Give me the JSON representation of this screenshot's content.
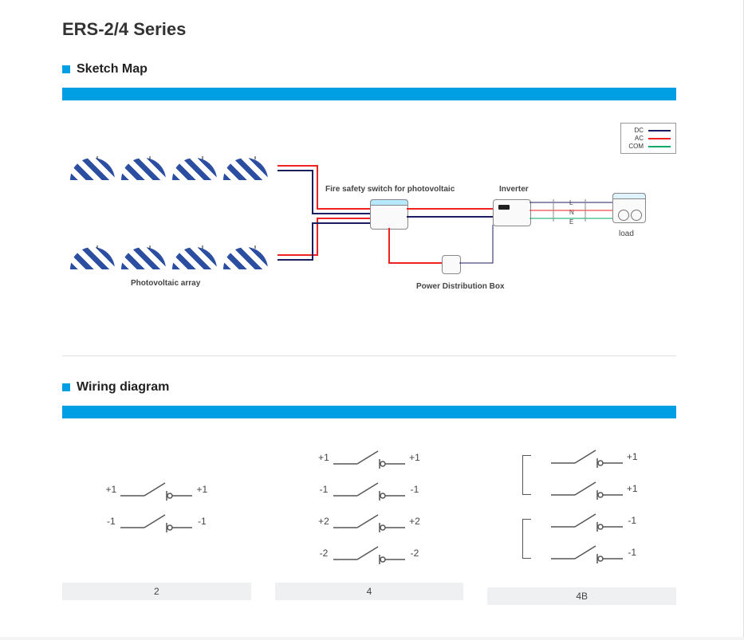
{
  "title": "ERS-2/4 Series",
  "sections": {
    "sketch": "Sketch Map",
    "wiring": "Wiring diagram"
  },
  "accent_color": "#009fe3",
  "sketch": {
    "labels": {
      "pv_array": "Photovoltaic array",
      "fire_switch": "Fire safety switch for photovoltaic",
      "inverter": "Inverter",
      "power_box": "Power Distribution Box",
      "load": "load",
      "bus_L": "L",
      "bus_N": "N",
      "bus_E": "E"
    },
    "legend": {
      "dc": {
        "label": "DC",
        "color": "#1b1e60"
      },
      "ac": {
        "label": "AC",
        "color": "#e22222"
      },
      "com": {
        "label": "COM",
        "color": "#00a060"
      }
    }
  },
  "wiring": {
    "cols": [
      {
        "caption": "2",
        "type": "plain",
        "rows": [
          "+1",
          "-1"
        ]
      },
      {
        "caption": "4",
        "type": "plain",
        "rows": [
          "+1",
          "-1",
          "+2",
          "-2"
        ]
      },
      {
        "caption": "4B",
        "type": "bracket",
        "pairs": [
          [
            "+1",
            "+1"
          ],
          [
            "-1",
            "-1"
          ]
        ]
      }
    ]
  }
}
